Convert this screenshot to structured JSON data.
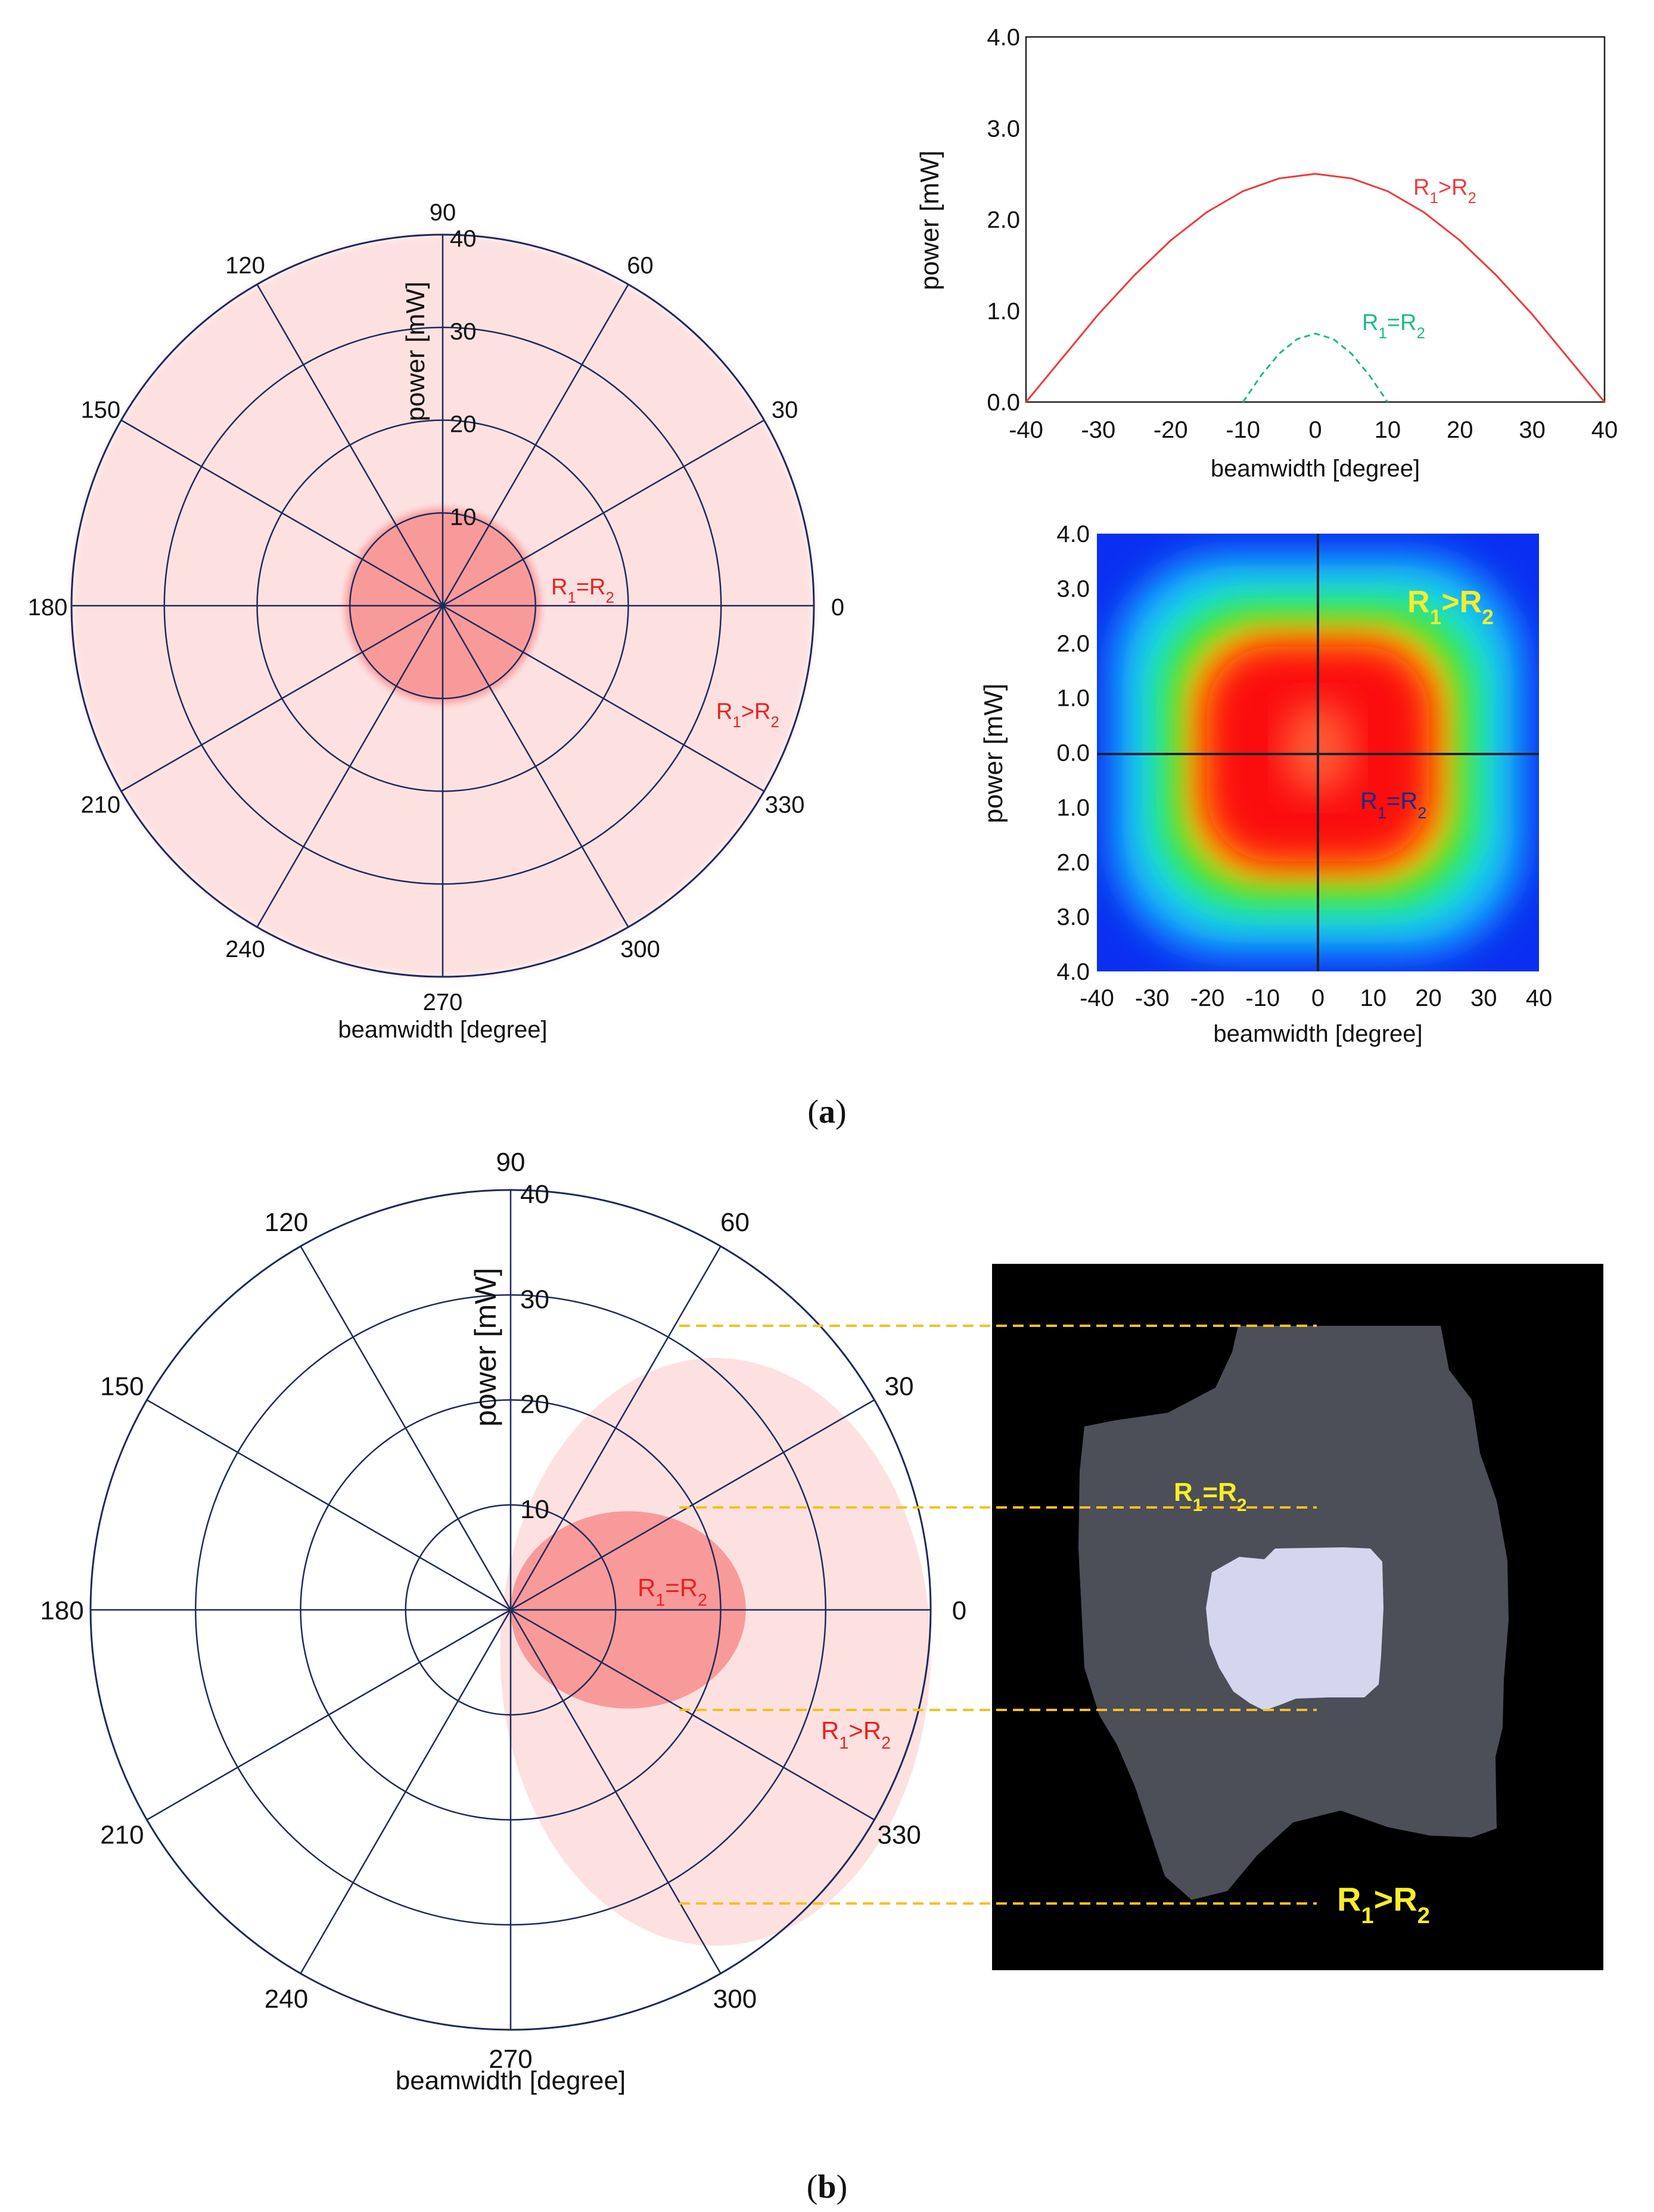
{
  "figure": {
    "panel_a_caption": "a",
    "panel_b_caption": "b"
  },
  "chart_data": [
    {
      "id": "polar_a",
      "type": "polar",
      "title": "",
      "xlabel": "beamwidth [degree]",
      "ylabel": "power [mW]",
      "angle_ticks": [
        0,
        30,
        60,
        90,
        120,
        150,
        180,
        210,
        240,
        270,
        300,
        330
      ],
      "radial_ticks": [
        10,
        20,
        30,
        40
      ],
      "rlim": [
        0,
        40
      ],
      "regions": [
        {
          "name": "R1>R2",
          "label_main": "R",
          "sub1": "1",
          "rel": ">R",
          "sub2": "2",
          "shape": "circle",
          "center_r": 0,
          "radius": 40,
          "color": "#fde1e1"
        },
        {
          "name": "R1=R2",
          "label_main": "R",
          "sub1": "1",
          "rel": "=R",
          "sub2": "2",
          "shape": "circle",
          "center_r": 0,
          "radius": 10.5,
          "color": "#f99a9a"
        }
      ]
    },
    {
      "id": "line_a",
      "type": "line",
      "title": "",
      "xlabel": "beamwidth [degree]",
      "ylabel": "power [mW]",
      "xlim": [
        -40,
        40
      ],
      "ylim": [
        0,
        4
      ],
      "x_ticks": [
        -40,
        -30,
        -20,
        -10,
        0,
        10,
        20,
        30,
        40
      ],
      "y_ticks": [
        "0.0",
        "1.0",
        "2.0",
        "3.0",
        "4.0"
      ],
      "series": [
        {
          "name": "R1>R2",
          "label_main": "R",
          "sub1": "1",
          "rel": ">R",
          "sub2": "2",
          "color": "#ef3b3b",
          "style": "solid",
          "x": [
            -40,
            -35,
            -30,
            -25,
            -20,
            -15,
            -10,
            -5,
            0,
            5,
            10,
            15,
            20,
            25,
            30,
            35,
            40
          ],
          "y": [
            0.0,
            0.48,
            0.96,
            1.39,
            1.77,
            2.08,
            2.31,
            2.45,
            2.5,
            2.45,
            2.31,
            2.08,
            1.77,
            1.39,
            0.96,
            0.48,
            0.0
          ]
        },
        {
          "name": "R1=R2",
          "label_main": "R",
          "sub1": "1",
          "rel": "=R",
          "sub2": "2",
          "color": "#1fba86",
          "style": "dashed",
          "x": [
            -10,
            -7.5,
            -5,
            -2.5,
            0,
            2.5,
            5,
            7.5,
            10
          ],
          "y": [
            0.0,
            0.29,
            0.53,
            0.69,
            0.75,
            0.69,
            0.53,
            0.29,
            0.0
          ]
        }
      ]
    },
    {
      "id": "heatmap_a",
      "type": "heatmap",
      "title": "",
      "xlabel": "beamwidth [degree]",
      "ylabel": "power [mW]",
      "xlim": [
        -40,
        40
      ],
      "x_ticks": [
        -40,
        -30,
        -20,
        -10,
        0,
        10,
        20,
        30,
        40
      ],
      "y_ticks": [
        "4.0",
        "3.0",
        "2.0",
        "1.0",
        "0.0",
        "1.0",
        "2.0",
        "3.0",
        "4.0"
      ],
      "colors": {
        "background": "#0a2ff0",
        "ring_lightblue": "#14a8ff",
        "ring_cyan": "#1fe6e0",
        "ring_green": "#22e33a",
        "ring_yellow": "#f5f010",
        "ring_orange": "#ff8a00",
        "core_red": "#fb0a0a",
        "inner": "#ff5a35"
      },
      "annotations": [
        {
          "main": "R",
          "sub1": "1",
          "rel": ">R",
          "sub2": "2",
          "color": "#f5ee2a"
        },
        {
          "main": "R",
          "sub1": "1",
          "rel": "=R",
          "sub2": "2",
          "color": "#1b2a8a"
        }
      ]
    },
    {
      "id": "polar_b",
      "type": "polar",
      "title": "",
      "xlabel": "beamwidth [degree]",
      "ylabel": "power [mW]",
      "angle_ticks": [
        0,
        30,
        60,
        90,
        120,
        150,
        180,
        210,
        240,
        270,
        300,
        330
      ],
      "radial_ticks": [
        10,
        20,
        30,
        40
      ],
      "rlim": [
        0,
        40
      ],
      "regions": [
        {
          "name": "R1>R2",
          "label_main": "R",
          "sub1": "1",
          "rel": ">R",
          "sub2": "2",
          "shape": "ellipse",
          "center_x": 19.5,
          "center_y": -4.0,
          "radius_x": 20.5,
          "radius_y": 28.0,
          "color": "#fde1e1"
        },
        {
          "name": "R1=R2",
          "label_main": "R",
          "sub1": "1",
          "rel": "=R",
          "sub2": "2",
          "shape": "ellipse",
          "center_x": 11.2,
          "center_y": 0,
          "radius_x": 11.2,
          "radius_y": 9.4,
          "color": "#f99a9a"
        }
      ]
    },
    {
      "id": "depthmap_b",
      "type": "image-map",
      "background": "#000000",
      "outer_color": "#4c4e58",
      "inner_color": "#d4d6ee",
      "guide_color": "#f5c21a",
      "annotations": [
        {
          "main": "R",
          "sub1": "1",
          "rel": "=R",
          "sub2": "2",
          "color": "#f5ee2a"
        },
        {
          "main": "R",
          "sub1": "1",
          "rel": ">R",
          "sub2": "2",
          "color": "#f5ee2a"
        }
      ]
    }
  ]
}
